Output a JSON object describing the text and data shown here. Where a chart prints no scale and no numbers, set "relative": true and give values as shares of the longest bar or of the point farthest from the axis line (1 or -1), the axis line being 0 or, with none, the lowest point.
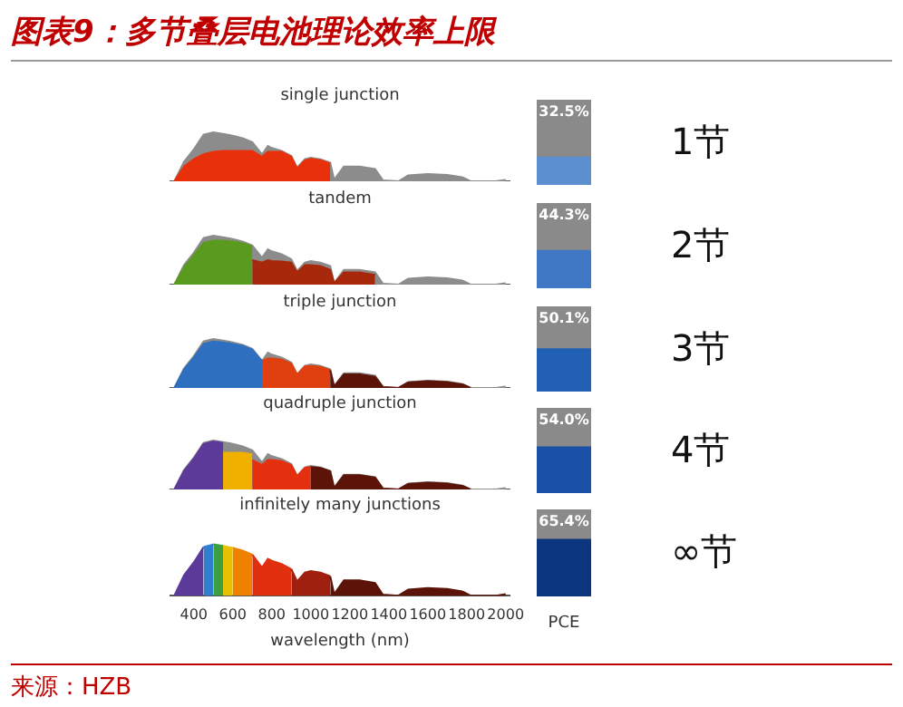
{
  "chart_data": [
    {
      "type": "other",
      "title": "图表9：多节叠层电池理论效率上限",
      "annotations": [
        "来源：HZB"
      ]
    },
    {
      "type": "area",
      "title": "single junction",
      "relative": true,
      "xlim": [
        280,
        2020
      ],
      "tick_labels": false,
      "series": [
        {
          "color": "#8c8c8c",
          "x": [
            300,
            350,
            400,
            450,
            500,
            550,
            600,
            650,
            700,
            750,
            780,
            800,
            850,
            900,
            930,
            970,
            1000,
            1050,
            1100,
            1120,
            1170,
            1250,
            1330,
            1370,
            1450,
            1500,
            1600,
            1700,
            1780,
            1820,
            1950,
            2000
          ],
          "values": [
            0,
            0.4,
            0.65,
            0.95,
            1,
            0.97,
            0.93,
            0.88,
            0.8,
            0.55,
            0.72,
            0.68,
            0.62,
            0.52,
            0.28,
            0.45,
            0.48,
            0.45,
            0.38,
            0.03,
            0.3,
            0.3,
            0.25,
            0.02,
            0,
            0.12,
            0.15,
            0.13,
            0.08,
            0,
            0,
            0.03
          ]
        },
        {
          "color": "#e8300a",
          "x": [
            300,
            350,
            400,
            450,
            500,
            550,
            600,
            650,
            700,
            750,
            780,
            800,
            850,
            900,
            930,
            970,
            1000,
            1050,
            1100
          ],
          "values": [
            0,
            0.3,
            0.45,
            0.55,
            0.6,
            0.62,
            0.62,
            0.62,
            0.62,
            0.5,
            0.6,
            0.6,
            0.6,
            0.5,
            0.26,
            0.43,
            0.46,
            0.43,
            0.36
          ]
        }
      ]
    },
    {
      "type": "bar",
      "categories": [
        null
      ],
      "annotations": [
        "1节"
      ],
      "values": [
        32.5
      ],
      "value_labels": [
        "32.5%"
      ],
      "color": "#5b8fd0",
      "ylim": [
        0,
        100
      ],
      "tick_labels": false
    },
    {
      "type": "area",
      "title": "tandem",
      "relative": true,
      "xlim": [
        280,
        2020
      ],
      "tick_labels": false,
      "series": [
        {
          "color": "#8c8c8c",
          "x": [
            300,
            350,
            400,
            450,
            500,
            550,
            600,
            650,
            700,
            750,
            780,
            800,
            850,
            900,
            930,
            970,
            1000,
            1050,
            1100,
            1120,
            1170,
            1250,
            1330,
            1370,
            1450,
            1500,
            1600,
            1700,
            1780,
            1820,
            1950,
            2000
          ],
          "values": [
            0,
            0.4,
            0.65,
            0.95,
            1,
            0.97,
            0.93,
            0.88,
            0.8,
            0.55,
            0.72,
            0.68,
            0.62,
            0.52,
            0.28,
            0.45,
            0.48,
            0.45,
            0.38,
            0.03,
            0.3,
            0.3,
            0.25,
            0.02,
            0,
            0.12,
            0.15,
            0.13,
            0.08,
            0,
            0,
            0.03
          ]
        },
        {
          "color": "#5a9a1e",
          "x": [
            300,
            350,
            400,
            450,
            500,
            550,
            600,
            650,
            700
          ],
          "values": [
            0,
            0.35,
            0.6,
            0.85,
            0.9,
            0.9,
            0.88,
            0.85,
            0.78
          ]
        },
        {
          "color": "#a8280c",
          "x": [
            700,
            750,
            780,
            800,
            850,
            900,
            930,
            970,
            1000,
            1050,
            1100,
            1120,
            1170,
            1250,
            1330
          ],
          "values": [
            0.5,
            0.45,
            0.5,
            0.48,
            0.47,
            0.45,
            0.25,
            0.4,
            0.4,
            0.38,
            0.3,
            0.03,
            0.25,
            0.25,
            0.2
          ]
        }
      ]
    },
    {
      "type": "bar",
      "categories": [
        null
      ],
      "annotations": [
        "2节"
      ],
      "values": [
        44.3
      ],
      "value_labels": [
        "44.3%"
      ],
      "color": "#3f78c4",
      "ylim": [
        0,
        100
      ],
      "tick_labels": false
    },
    {
      "type": "area",
      "title": "triple junction",
      "relative": true,
      "xlim": [
        280,
        2020
      ],
      "tick_labels": false,
      "series": [
        {
          "color": "#8c8c8c",
          "x": [
            300,
            350,
            400,
            450,
            500,
            550,
            600,
            650,
            700,
            750,
            780,
            800,
            850,
            900,
            930,
            970,
            1000,
            1050,
            1100,
            1120,
            1170,
            1250,
            1330,
            1370,
            1450,
            1500,
            1600,
            1700,
            1780,
            1820,
            1950,
            2000
          ],
          "values": [
            0,
            0.4,
            0.65,
            0.95,
            1,
            0.97,
            0.93,
            0.88,
            0.8,
            0.55,
            0.72,
            0.68,
            0.62,
            0.52,
            0.28,
            0.45,
            0.48,
            0.45,
            0.38,
            0.03,
            0.3,
            0.3,
            0.25,
            0.02,
            0,
            0.12,
            0.15,
            0.13,
            0.08,
            0,
            0,
            0.03
          ]
        },
        {
          "color": "#2f6fc0",
          "x": [
            300,
            350,
            400,
            450,
            500,
            550,
            600,
            650,
            700,
            750
          ],
          "values": [
            0,
            0.38,
            0.62,
            0.9,
            0.95,
            0.93,
            0.9,
            0.86,
            0.78,
            0.55
          ]
        },
        {
          "color": "#e0400f",
          "x": [
            750,
            780,
            800,
            850,
            900,
            930,
            970,
            1000,
            1050,
            1100
          ],
          "values": [
            0.55,
            0.6,
            0.6,
            0.58,
            0.5,
            0.27,
            0.44,
            0.45,
            0.43,
            0.36
          ]
        },
        {
          "color": "#5c1408",
          "x": [
            1100,
            1120,
            1170,
            1250,
            1330,
            1370,
            1450,
            1500,
            1600,
            1700,
            1780,
            1820
          ],
          "values": [
            0.36,
            0.03,
            0.28,
            0.28,
            0.23,
            0.02,
            0,
            0.11,
            0.14,
            0.12,
            0.07,
            0
          ]
        }
      ]
    },
    {
      "type": "bar",
      "categories": [
        null
      ],
      "annotations": [
        "3节"
      ],
      "values": [
        50.1
      ],
      "value_labels": [
        "50.1%"
      ],
      "color": "#2260b4",
      "ylim": [
        0,
        100
      ],
      "tick_labels": false
    },
    {
      "type": "area",
      "title": "quadruple junction",
      "relative": true,
      "xlim": [
        280,
        2020
      ],
      "tick_labels": false,
      "series": [
        {
          "color": "#8c8c8c",
          "x": [
            300,
            350,
            400,
            450,
            500,
            550,
            600,
            650,
            700,
            750,
            780,
            800,
            850,
            900,
            930,
            970,
            1000,
            1050,
            1100,
            1120,
            1170,
            1250,
            1330,
            1370,
            1450,
            1500,
            1600,
            1700,
            1780,
            1820,
            1950,
            2000
          ],
          "values": [
            0,
            0.4,
            0.65,
            0.95,
            1,
            0.97,
            0.93,
            0.88,
            0.8,
            0.55,
            0.72,
            0.68,
            0.62,
            0.52,
            0.28,
            0.45,
            0.48,
            0.45,
            0.38,
            0.03,
            0.3,
            0.3,
            0.25,
            0.02,
            0,
            0.12,
            0.15,
            0.13,
            0.08,
            0,
            0,
            0.03
          ]
        },
        {
          "color": "#5b3a9a",
          "x": [
            300,
            350,
            400,
            450,
            500,
            550
          ],
          "values": [
            0,
            0.38,
            0.63,
            0.93,
            0.98,
            0.95
          ]
        },
        {
          "color": "#f0b000",
          "x": [
            550,
            600,
            650,
            700
          ],
          "values": [
            0.75,
            0.75,
            0.75,
            0.72
          ]
        },
        {
          "color": "#e53010",
          "x": [
            700,
            750,
            780,
            800,
            850,
            900,
            930,
            970,
            1000
          ],
          "values": [
            0.6,
            0.5,
            0.6,
            0.6,
            0.58,
            0.5,
            0.27,
            0.44,
            0.46
          ]
        },
        {
          "color": "#5c1408",
          "x": [
            1000,
            1050,
            1100,
            1120,
            1170,
            1250,
            1330,
            1370,
            1450,
            1500,
            1600,
            1700,
            1780,
            1820
          ],
          "values": [
            0.46,
            0.44,
            0.37,
            0.03,
            0.29,
            0.29,
            0.24,
            0.02,
            0,
            0.11,
            0.14,
            0.12,
            0.07,
            0
          ]
        }
      ]
    },
    {
      "type": "bar",
      "categories": [
        null
      ],
      "annotations": [
        "4节"
      ],
      "values": [
        54.0
      ],
      "value_labels": [
        "54.0%"
      ],
      "color": "#1a50a8",
      "ylim": [
        0,
        100
      ],
      "tick_labels": false
    },
    {
      "type": "area",
      "title": "infinitely many junctions",
      "relative": true,
      "xlim": [
        280,
        2020
      ],
      "xticks": [
        400,
        600,
        800,
        1000,
        1200,
        1400,
        1600,
        1800,
        2000
      ],
      "xlabel": "wavelength (nm)",
      "tick_labels": "x",
      "series": [
        {
          "color": "#5b3a9a",
          "x": [
            300,
            350,
            400,
            450
          ],
          "values": [
            0,
            0.4,
            0.65,
            0.95
          ]
        },
        {
          "color": "#2f7fd0",
          "x": [
            450,
            500
          ],
          "values": [
            0.95,
            1
          ]
        },
        {
          "color": "#3aa040",
          "x": [
            500,
            550
          ],
          "values": [
            1,
            0.97
          ]
        },
        {
          "color": "#e8c000",
          "x": [
            550,
            600
          ],
          "values": [
            0.97,
            0.93
          ]
        },
        {
          "color": "#f08000",
          "x": [
            600,
            650,
            700
          ],
          "values": [
            0.93,
            0.88,
            0.8
          ]
        },
        {
          "color": "#e03010",
          "x": [
            700,
            750,
            780,
            800,
            850,
            900
          ],
          "values": [
            0.8,
            0.55,
            0.72,
            0.68,
            0.62,
            0.52
          ]
        },
        {
          "color": "#a02010",
          "x": [
            900,
            930,
            970,
            1000,
            1050,
            1100
          ],
          "values": [
            0.52,
            0.28,
            0.45,
            0.48,
            0.45,
            0.38
          ]
        },
        {
          "color": "#5c1408",
          "x": [
            1100,
            1120,
            1170,
            1250,
            1330,
            1370,
            1450,
            1500,
            1600,
            1700,
            1780,
            1820,
            1950,
            2000
          ],
          "values": [
            0.38,
            0.03,
            0.3,
            0.3,
            0.25,
            0.02,
            0,
            0.12,
            0.15,
            0.13,
            0.08,
            0,
            0,
            0.03
          ]
        }
      ]
    },
    {
      "type": "bar",
      "categories": [
        null
      ],
      "annotations": [
        "∞节"
      ],
      "values": [
        65.4
      ],
      "value_labels": [
        "65.4%"
      ],
      "color": "#0c3580",
      "ylim": [
        0,
        100
      ],
      "xlabel": "PCE",
      "tick_labels": false
    }
  ]
}
